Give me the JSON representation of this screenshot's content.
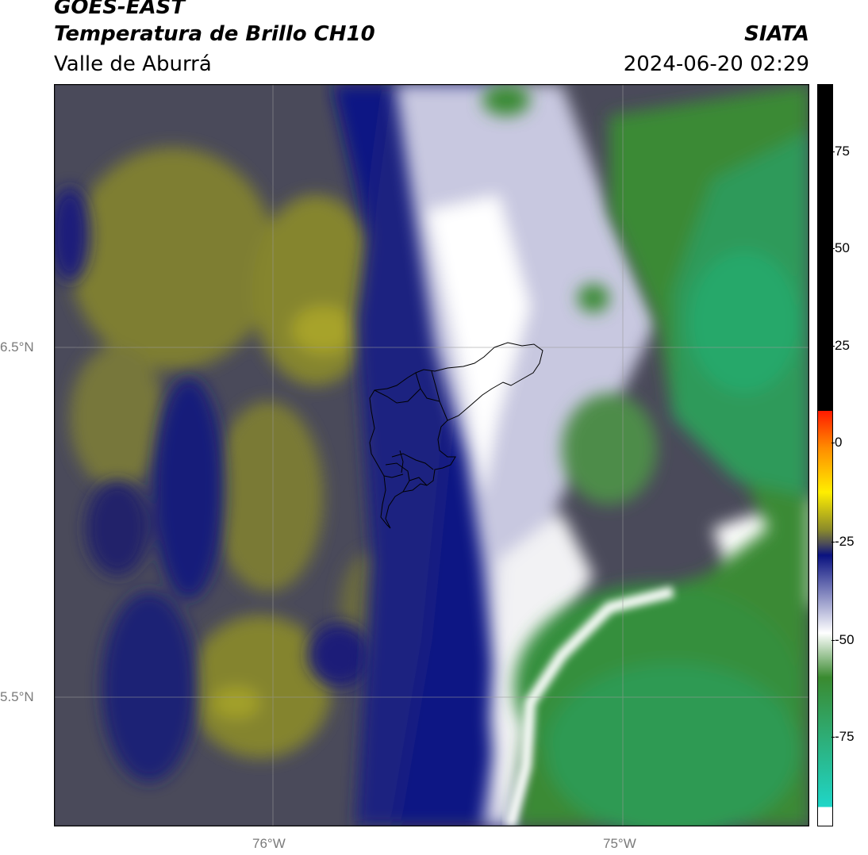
{
  "header": {
    "satellite": "GOES-EAST",
    "product": "Temperatura de Brillo CH10",
    "region": "Valle de Aburrá",
    "institution": "SIATA",
    "datetime": "2024-06-20 02:29"
  },
  "axes": {
    "lat_labels": [
      "6.5°N",
      "5.5°N"
    ],
    "lon_labels": [
      "76°W",
      "75°W"
    ]
  },
  "colorbar": {
    "ticks": [
      "75",
      "50",
      "25",
      "0",
      "-25",
      "-50",
      "-75"
    ],
    "colors": {
      "black": "#000000",
      "red": "#ff1a00",
      "orange": "#ff8c00",
      "yellow": "#ffee00",
      "olive": "#8c8c2a",
      "gray": "#4a4a5a",
      "navy": "#0a1280",
      "white": "#ffffff",
      "green": "#3a8a30",
      "teal": "#1fd6c8"
    }
  }
}
